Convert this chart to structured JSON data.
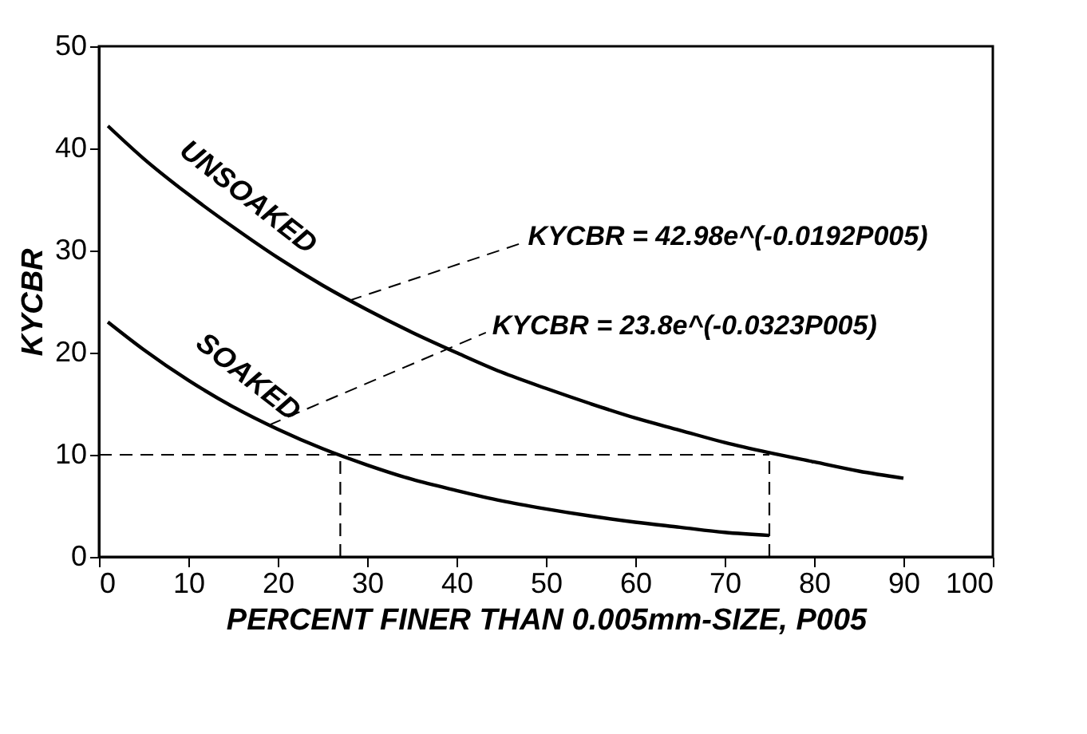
{
  "chart_data": {
    "type": "line",
    "xlabel": "PERCENT FINER THAN 0.005mm-SIZE, P005",
    "ylabel": "KYCBR",
    "xlim": [
      0,
      100
    ],
    "xticks": [
      0,
      10,
      20,
      30,
      40,
      50,
      60,
      70,
      80,
      90,
      100
    ],
    "ylim": [
      0,
      50
    ],
    "yticks": [
      0,
      10,
      20,
      30,
      40,
      50
    ],
    "grid": false,
    "marker": "none",
    "series": [
      {
        "name": "UNSOAKED",
        "color": "#000000",
        "line_style": "solid",
        "x": [
          1,
          5,
          10,
          15,
          20,
          25,
          30,
          35,
          40,
          45,
          50,
          55,
          60,
          65,
          70,
          75,
          80,
          85,
          90
        ],
        "values": [
          42.2,
          39.0,
          35.5,
          32.3,
          29.3,
          26.6,
          24.2,
          22.0,
          20.0,
          18.1,
          16.5,
          15.0,
          13.6,
          12.4,
          11.2,
          10.2,
          9.3,
          8.4,
          7.7
        ]
      },
      {
        "name": "SOAKED",
        "color": "#000000",
        "line_style": "solid",
        "x": [
          1,
          5,
          10,
          15,
          20,
          25,
          30,
          35,
          40,
          45,
          50,
          55,
          60,
          65,
          70,
          75
        ],
        "values": [
          23.0,
          20.3,
          17.3,
          14.7,
          12.5,
          10.6,
          9.0,
          7.6,
          6.5,
          5.5,
          4.7,
          4.0,
          3.4,
          2.9,
          2.4,
          2.1
        ]
      },
      {
        "color": "#000000",
        "line_style": "dashed",
        "x": [
          0,
          75
        ],
        "values": [
          10,
          10
        ]
      },
      {
        "color": "#000000",
        "line_style": "dashed",
        "x": [
          27,
          27
        ],
        "values": [
          0,
          10
        ]
      },
      {
        "color": "#000000",
        "line_style": "dashed",
        "x": [
          75,
          75
        ],
        "values": [
          0,
          10
        ]
      }
    ],
    "annotations": [
      {
        "text": "KYCBR = 42.98e^(-0.0192P005)",
        "x": 28,
        "y": 25.1
      },
      {
        "text": "KYCBR = 23.8e^(-0.0323P005)",
        "x": 19,
        "y": 12.9
      }
    ]
  }
}
